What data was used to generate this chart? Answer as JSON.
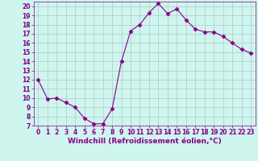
{
  "x": [
    0,
    1,
    2,
    3,
    4,
    5,
    6,
    7,
    8,
    9,
    10,
    11,
    12,
    13,
    14,
    15,
    16,
    17,
    18,
    19,
    20,
    21,
    22,
    23
  ],
  "y": [
    12.0,
    9.9,
    10.0,
    9.5,
    9.0,
    7.8,
    7.2,
    7.2,
    8.8,
    14.0,
    17.3,
    18.0,
    19.3,
    20.3,
    19.2,
    19.7,
    18.5,
    17.5,
    17.2,
    17.2,
    16.7,
    16.0,
    15.3,
    14.9
  ],
  "line_color": "#880088",
  "marker": "D",
  "marker_size": 2.5,
  "bg_color": "#cef5ee",
  "grid_color": "#b0c8c8",
  "xlabel": "Windchill (Refroidissement éolien,°C)",
  "xlim": [
    -0.5,
    23.5
  ],
  "ylim": [
    7,
    20.5
  ],
  "yticks": [
    7,
    8,
    9,
    10,
    11,
    12,
    13,
    14,
    15,
    16,
    17,
    18,
    19,
    20
  ],
  "xticks": [
    0,
    1,
    2,
    3,
    4,
    5,
    6,
    7,
    8,
    9,
    10,
    11,
    12,
    13,
    14,
    15,
    16,
    17,
    18,
    19,
    20,
    21,
    22,
    23
  ],
  "tick_color": "#880088",
  "label_color": "#880088",
  "label_fontsize": 6.5,
  "tick_fontsize": 5.5
}
